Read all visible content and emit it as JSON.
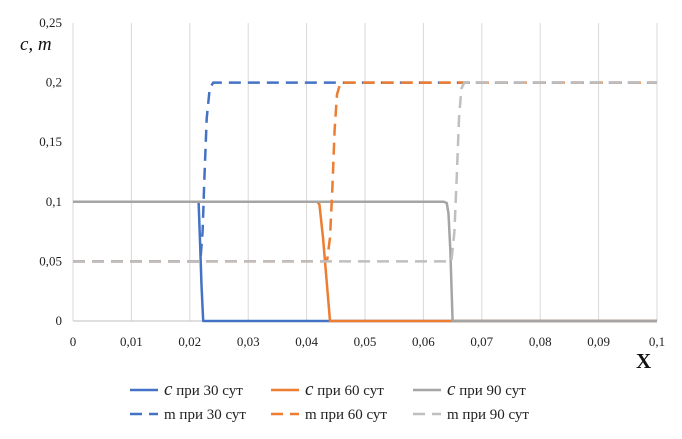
{
  "chart_data": {
    "type": "line",
    "ylabel": "c, m",
    "xlabel": "X",
    "xlim": [
      0,
      0.1
    ],
    "ylim": [
      0,
      0.25
    ],
    "xticks": [
      "0",
      "0,01",
      "0,02",
      "0,03",
      "0,04",
      "0,05",
      "0,06",
      "0,07",
      "0,08",
      "0,09",
      "0,1"
    ],
    "yticks": [
      "0",
      "0,05",
      "0,1",
      "0,15",
      "0,2",
      "0,25"
    ],
    "grid": "vertical",
    "legend_position": "bottom",
    "series": [
      {
        "name_symbol": "c",
        "name_rest": " при 30 сут",
        "style": "solid",
        "color": "#4472C4",
        "x": [
          0,
          0.0215,
          0.0218,
          0.022,
          0.0223,
          0.1
        ],
        "y": [
          0.1,
          0.1,
          0.06,
          0.03,
          0,
          0
        ]
      },
      {
        "name_symbol": "c",
        "name_rest": " при 60 сут",
        "style": "solid",
        "color": "#ED7D31",
        "x": [
          0,
          0.0418,
          0.0422,
          0.0428,
          0.0435,
          0.044,
          0.1
        ],
        "y": [
          0.1,
          0.1,
          0.098,
          0.07,
          0.03,
          0,
          0
        ]
      },
      {
        "name_symbol": "c",
        "name_rest": " при 90 сут",
        "style": "solid",
        "color": "#A5A5A5",
        "x": [
          0,
          0.0635,
          0.064,
          0.0643,
          0.0646,
          0.065,
          0.1
        ],
        "y": [
          0.1,
          0.1,
          0.099,
          0.09,
          0.06,
          0,
          0
        ]
      },
      {
        "name": "m при 30 сут",
        "style": "dashed",
        "color": "#4472C4",
        "x": [
          0,
          0.0218,
          0.0222,
          0.0225,
          0.0229,
          0.0234,
          0.024,
          0.1
        ],
        "y": [
          0.05,
          0.05,
          0.075,
          0.12,
          0.17,
          0.195,
          0.2,
          0.2
        ]
      },
      {
        "name": "m при 60 сут",
        "style": "dashed",
        "color": "#ED7D31",
        "x": [
          0,
          0.0435,
          0.044,
          0.0444,
          0.0448,
          0.0452,
          0.0458,
          0.1
        ],
        "y": [
          0.05,
          0.05,
          0.07,
          0.11,
          0.16,
          0.19,
          0.2,
          0.2
        ]
      },
      {
        "name": "m при 90 сут",
        "style": "dashed",
        "color": "#BFBFBF",
        "x": [
          0,
          0.0648,
          0.0653,
          0.0657,
          0.0661,
          0.0665,
          0.067,
          0.1
        ],
        "y": [
          0.05,
          0.05,
          0.075,
          0.12,
          0.17,
          0.195,
          0.2,
          0.2
        ]
      }
    ]
  }
}
